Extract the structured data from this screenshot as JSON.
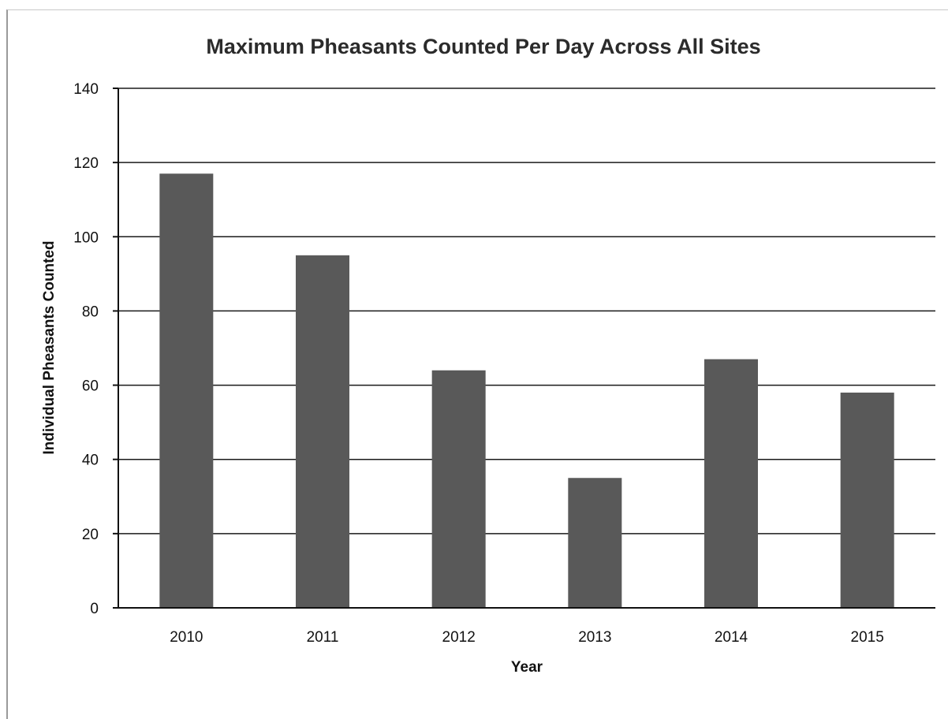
{
  "chart_data": {
    "type": "bar",
    "title": "Maximum Pheasants Counted Per Day Across All Sites",
    "xlabel": "Year",
    "ylabel": "Individual Pheasants Counted",
    "categories": [
      "2010",
      "2011",
      "2012",
      "2013",
      "2014",
      "2015"
    ],
    "values": [
      117,
      95,
      64,
      35,
      67,
      58
    ],
    "ylim": [
      0,
      140
    ],
    "yticks": [
      0,
      20,
      40,
      60,
      80,
      100,
      120,
      140
    ],
    "grid": true,
    "legend": "none",
    "bar_color": "#595959",
    "gridline_color": "#1a1a1a"
  }
}
